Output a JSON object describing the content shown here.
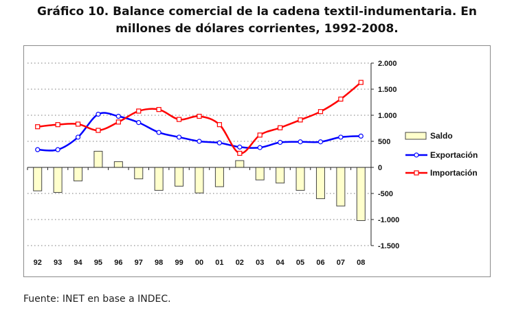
{
  "header": {
    "title_line1": "Gráfico 10. Balance comercial de la cadena textil-indumentaria. En",
    "title_line2": "millones de dólares corrientes, 1992-2008."
  },
  "footer": {
    "source": "Fuente: INET en base a INDEC."
  },
  "chart_data": {
    "type": "bar+line",
    "title": "Gráfico 10. Balance comercial de la cadena textil-indumentaria. En millones de dólares corrientes, 1992-2008.",
    "categories": [
      "92",
      "93",
      "94",
      "95",
      "96",
      "97",
      "98",
      "99",
      "00",
      "01",
      "02",
      "03",
      "04",
      "05",
      "06",
      "07",
      "08"
    ],
    "series": [
      {
        "name": "Saldo",
        "type": "bar",
        "color": "#ffffcc",
        "border": "#444444",
        "values": [
          -450,
          -480,
          -260,
          310,
          110,
          -220,
          -440,
          -360,
          -490,
          -370,
          130,
          -240,
          -300,
          -440,
          -600,
          -740,
          -1020
        ]
      },
      {
        "name": "Exportación",
        "type": "line",
        "marker": "circle",
        "color": "#0000ff",
        "values": [
          340,
          340,
          580,
          1020,
          980,
          860,
          670,
          580,
          500,
          470,
          390,
          380,
          480,
          490,
          490,
          580,
          600
        ]
      },
      {
        "name": "Importación",
        "type": "line",
        "marker": "square",
        "color": "#ff0000",
        "values": [
          780,
          820,
          830,
          710,
          870,
          1080,
          1110,
          920,
          980,
          820,
          270,
          620,
          760,
          910,
          1070,
          1310,
          1630
        ]
      }
    ],
    "y_ticks": [
      -1500,
      -1000,
      -500,
      0,
      500,
      1000,
      1500,
      2000
    ],
    "y_tick_labels": [
      "-1.500",
      "-1.000",
      "-500",
      "0",
      "500",
      "1.000",
      "1.500",
      "2.000"
    ],
    "ylim": [
      -1500,
      2000
    ],
    "y_axis_position": "right",
    "grid": "dotted horizontal",
    "legend": "right",
    "xlabel": "",
    "ylabel": ""
  }
}
